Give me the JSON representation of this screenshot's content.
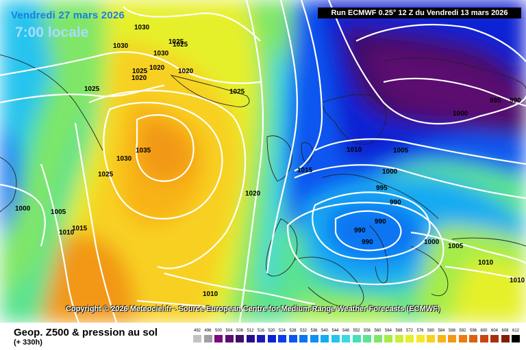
{
  "header": {
    "valid_date": "Vendredi 27 mars 2026",
    "valid_time": "7:00 locale",
    "run_info": "Run ECMWF 0.25° 12 Z du Vendredi 13 mars 2026"
  },
  "copyright": "Copyright © 2026 Meteociel.fr - Source European Centre for Medium-Range Weather Forecasts (ECMWF)",
  "footer": {
    "product": "Geop. Z500 & pression au sol",
    "lead_time": "(+ 330h)"
  },
  "legend": {
    "values": [
      "492",
      "496",
      "500",
      "504",
      "508",
      "512",
      "516",
      "520",
      "524",
      "528",
      "532",
      "536",
      "540",
      "544",
      "548",
      "552",
      "556",
      "560",
      "564",
      "568",
      "572",
      "576",
      "580",
      "584",
      "588",
      "592",
      "596",
      "600",
      "604",
      "608",
      "612"
    ],
    "colors": [
      "#c3c3c3",
      "#a0a0a0",
      "#7a0b7a",
      "#5c0f6f",
      "#3f1067",
      "#2a0a8c",
      "#1c1ab3",
      "#0a24d4",
      "#0a3ee8",
      "#0b57f0",
      "#0c74f2",
      "#0f8ff4",
      "#16abf2",
      "#25c4ee",
      "#3ad8e0",
      "#44e0b8",
      "#5ce290",
      "#7fe668",
      "#a5ec48",
      "#c8f034",
      "#e5f02a",
      "#f6e828",
      "#f8d020",
      "#f8b418",
      "#f29812",
      "#ea7c10",
      "#dc6010",
      "#c8460e",
      "#a6300c",
      "#801e0a",
      "#000000"
    ]
  },
  "isobar_labels": [
    {
      "text": "1030"
    },
    {
      "text": "1030"
    },
    {
      "text": "1025"
    },
    {
      "text": "1030"
    },
    {
      "text": "1025"
    },
    {
      "text": "1020"
    },
    {
      "text": "1020"
    },
    {
      "text": "1025"
    },
    {
      "text": "1020"
    },
    {
      "text": "1025"
    },
    {
      "text": "1025"
    },
    {
      "text": "1035"
    },
    {
      "text": "1030"
    },
    {
      "text": "1025"
    },
    {
      "text": "1000"
    },
    {
      "text": "1005"
    },
    {
      "text": "1010"
    },
    {
      "text": "1015"
    },
    {
      "text": "1020"
    },
    {
      "text": "1015"
    },
    {
      "text": "1010"
    },
    {
      "text": "1005"
    },
    {
      "text": "1000"
    },
    {
      "text": "995"
    },
    {
      "text": "990"
    },
    {
      "text": "990"
    },
    {
      "text": "990"
    },
    {
      "text": "990"
    },
    {
      "text": "1000"
    },
    {
      "text": "1005"
    },
    {
      "text": "1010"
    },
    {
      "text": "1010"
    },
    {
      "text": "1010"
    },
    {
      "text": "1000"
    },
    {
      "text": "995"
    },
    {
      "text": "990"
    }
  ]
}
